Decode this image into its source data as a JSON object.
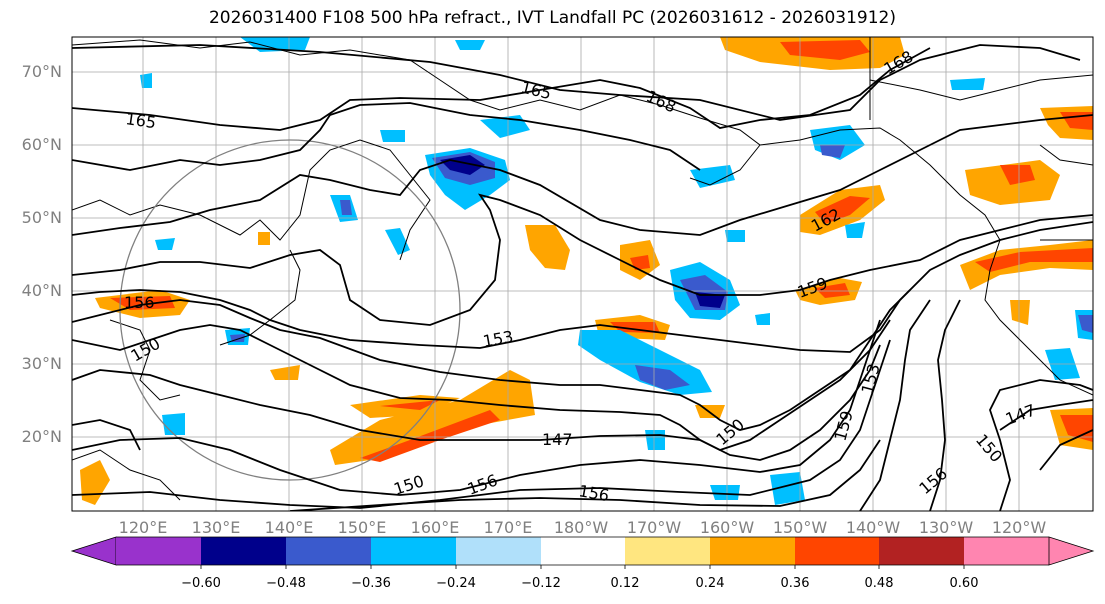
{
  "title": "2026031400 F108 500 hPa refract., IVT Landfall PC (2026031612 - 2026031912)",
  "lat_labels": [
    "70°N",
    "60°N",
    "50°N",
    "40°N",
    "30°N",
    "20°N"
  ],
  "lon_labels": [
    "120°E",
    "130°E",
    "140°E",
    "150°E",
    "160°E",
    "170°E",
    "180°W",
    "170°W",
    "160°W",
    "150°W",
    "140°W",
    "130°W",
    "120°W"
  ],
  "contour_labels": [
    "165",
    "165",
    "168",
    "168",
    "162",
    "159",
    "153",
    "150",
    "147",
    "156",
    "156",
    "150",
    "147",
    "156",
    "150",
    "153",
    "159",
    "156",
    "150"
  ],
  "colorbar": {
    "ticks": [
      "−0.60",
      "−0.48",
      "−0.36",
      "−0.24",
      "−0.12",
      "0.12",
      "0.24",
      "0.36",
      "0.48",
      "0.60"
    ],
    "colors": [
      "#9932cc",
      "#00008b",
      "#3a5acd",
      "#00bfff",
      "#b0e0fa",
      "#ffffff",
      "#ffe680",
      "#ffa500",
      "#ff4500",
      "#b22222",
      "#ff85b0"
    ]
  }
}
